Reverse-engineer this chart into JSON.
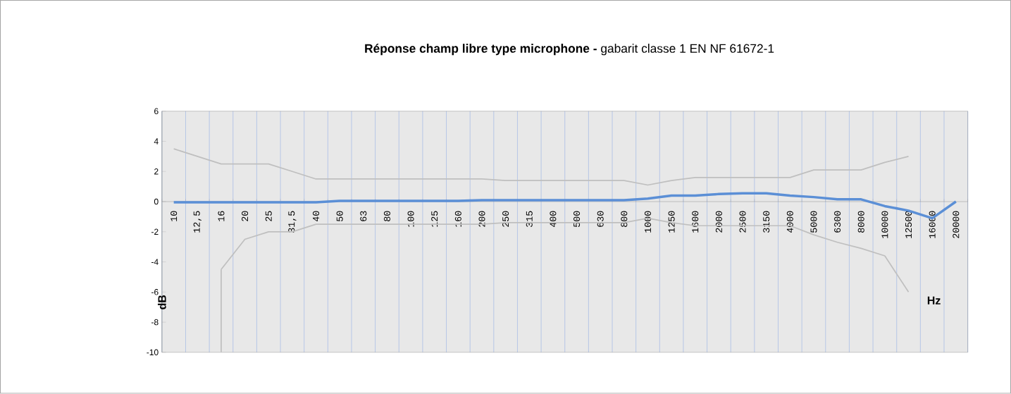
{
  "chart_data": {
    "type": "line",
    "title": "**Réponse champ libre type microphone  -** gabarit classe 1 EN NF 61672-1",
    "xlabel": "Hz",
    "ylabel": "dB",
    "categories": [
      "10",
      "12,5",
      "16",
      "20",
      "25",
      "31,5",
      "40",
      "50",
      "63",
      "80",
      "100",
      "125",
      "160",
      "200",
      "250",
      "315",
      "400",
      "500",
      "630",
      "800",
      "1000",
      "1250",
      "1600",
      "2000",
      "2500",
      "3150",
      "4000",
      "5000",
      "6300",
      "8000",
      "10000",
      "12500",
      "16000",
      "20000"
    ],
    "series": [
      {
        "color": "#bfbfbf",
        "values": [
          3.5,
          3.0,
          2.5,
          2.5,
          2.5,
          2.0,
          1.5,
          1.5,
          1.5,
          1.5,
          1.5,
          1.5,
          1.5,
          1.5,
          1.4,
          1.4,
          1.4,
          1.4,
          1.4,
          1.4,
          1.1,
          1.4,
          1.6,
          1.6,
          1.6,
          1.6,
          1.6,
          2.1,
          2.1,
          2.1,
          2.6,
          3.0,
          null,
          null
        ]
      },
      {
        "color": "#bfbfbf",
        "values": [
          null,
          null,
          -4.5,
          -2.5,
          -2.0,
          -2.0,
          -1.5,
          -1.5,
          -1.5,
          -1.5,
          -1.5,
          -1.5,
          -1.5,
          -1.5,
          -1.4,
          -1.4,
          -1.4,
          -1.4,
          -1.4,
          -1.4,
          -1.1,
          -1.4,
          -1.6,
          -1.6,
          -1.6,
          -1.6,
          -1.6,
          -2.2,
          -2.7,
          -3.1,
          -3.6,
          -6.0,
          null,
          null
        ]
      },
      {
        "color": "#bfbfbf",
        "x": [
          "16",
          "16"
        ],
        "values": [
          -10,
          -4.5
        ]
      },
      {
        "color": "#5b8fd6",
        "values": [
          -0.05,
          -0.05,
          -0.05,
          -0.05,
          -0.05,
          -0.05,
          -0.05,
          0.05,
          0.05,
          0.05,
          0.05,
          0.05,
          0.05,
          0.1,
          0.1,
          0.1,
          0.1,
          0.1,
          0.1,
          0.1,
          0.2,
          0.4,
          0.4,
          0.5,
          0.55,
          0.55,
          0.4,
          0.3,
          0.15,
          0.15,
          -0.3,
          -0.6,
          -1.1,
          0.0
        ]
      }
    ],
    "ylim": [
      -10,
      6
    ],
    "yticks": [
      -10,
      -8,
      -6,
      -4,
      -2,
      0,
      2,
      4,
      6
    ],
    "grid": "x",
    "marker": "none",
    "line_style": "solid"
  }
}
